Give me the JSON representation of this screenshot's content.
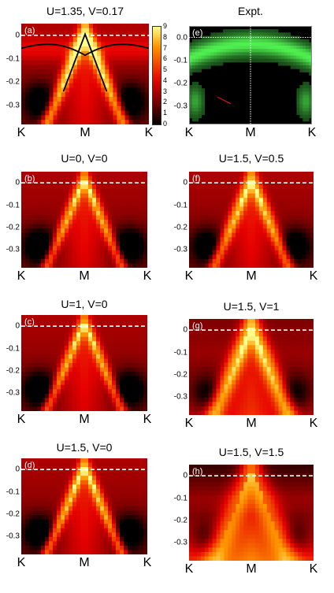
{
  "panels": [
    {
      "id": "a",
      "label": "(a)",
      "title": "U=1.35, V=0.17",
      "kind": "calc",
      "fermi": true,
      "overlay": true
    },
    {
      "id": "e",
      "label": "(e)",
      "title": "Expt.",
      "kind": "expt",
      "fermi": true
    },
    {
      "id": "b",
      "label": "(b)",
      "title": "U=0, V=0",
      "kind": "calc",
      "fermi": true
    },
    {
      "id": "f",
      "label": "(f)",
      "title": "U=1.5, V=0.5",
      "kind": "calc",
      "fermi": true
    },
    {
      "id": "c",
      "label": "(c)",
      "title": "U=1, V=0",
      "kind": "calc",
      "fermi": true
    },
    {
      "id": "g",
      "label": "(g)",
      "title": "U=1.5, V=1",
      "kind": "calc",
      "fermi": true
    },
    {
      "id": "d",
      "label": "(d)",
      "title": "U=1.5, V=0",
      "kind": "calc",
      "fermi": true
    },
    {
      "id": "h",
      "label": "(h)",
      "title": "U=1.5, V=1.5",
      "kind": "calc",
      "fermi": true
    }
  ],
  "y_ticks": [
    "0",
    "-0.1",
    "-0.2",
    "-0.3"
  ],
  "y_ticks_expt": [
    "0.0",
    "-0.1",
    "-0.2",
    "-0.3"
  ],
  "x_ticks": [
    "K",
    "M",
    "K"
  ],
  "colorbar_ticks": [
    "9",
    "8",
    "7",
    "6",
    "5",
    "4",
    "3",
    "2",
    "1",
    "0"
  ],
  "colors": {
    "hot_low": "#000000",
    "hot_mid": "#e03000",
    "hot_high": "#ffff80",
    "expt": "#33dd33",
    "fermi": "#ffffff"
  }
}
